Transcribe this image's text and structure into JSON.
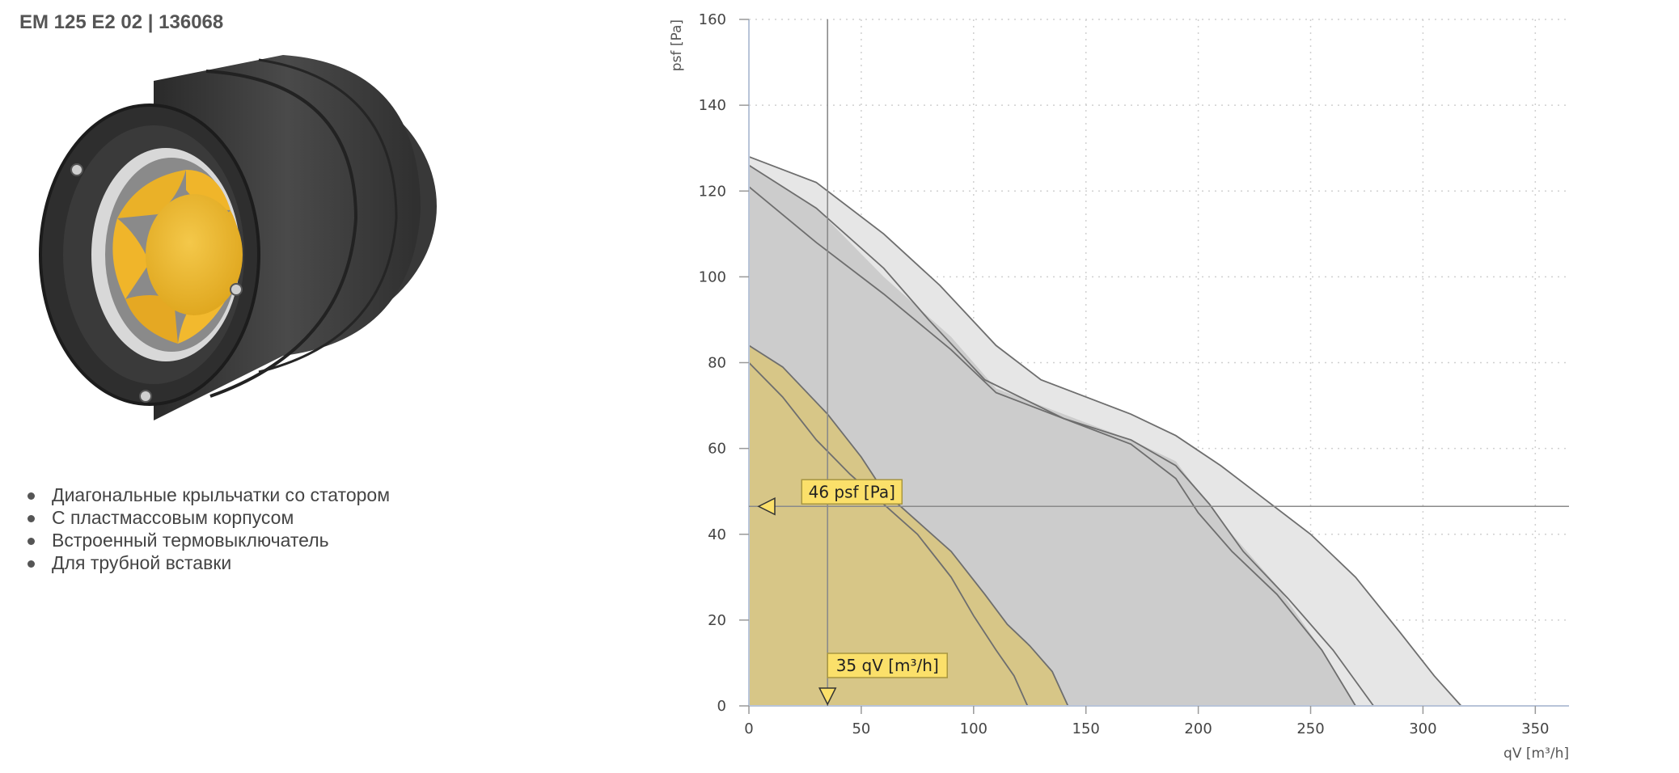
{
  "header": {
    "title": "EM 125 E2 02 | 136068"
  },
  "product": {
    "image_icon": "inline-duct-fan-icon"
  },
  "features": [
    "Диагональные крыльчатки со статором",
    "С пластмассовым корпусом",
    "Встроенный термовыключатель",
    "Для трубной вставки"
  ],
  "chart_data": {
    "type": "area",
    "xlabel": "qV [m³/h]",
    "ylabel": "psf [Pa]",
    "xlim": [
      0,
      365
    ],
    "ylim": [
      0,
      160
    ],
    "x_ticks": [
      0,
      50,
      100,
      150,
      200,
      250,
      300,
      350
    ],
    "y_ticks": [
      0,
      20,
      40,
      60,
      80,
      100,
      120,
      140,
      160
    ],
    "grid": true,
    "colors": {
      "high_area": "#e6e6e6",
      "mid_area": "#cccccc",
      "low_area": "#d7c687",
      "curve": "#6e6e6e",
      "marker_fill": "#fbe06a",
      "marker_border": "#a89640"
    },
    "areas": [
      {
        "x": [
          0,
          30,
          60,
          85,
          110,
          130,
          150,
          170,
          190,
          210,
          230,
          250,
          270,
          290,
          305,
          317
        ],
        "y": [
          128,
          122,
          110,
          98,
          84,
          76,
          72,
          68,
          63,
          56,
          48,
          40,
          30,
          17,
          7,
          0
        ]
      },
      {
        "x": [
          0,
          30,
          60,
          90,
          110,
          140,
          170,
          190,
          200,
          215,
          235,
          255,
          270
        ],
        "y": [
          126,
          116,
          100,
          86,
          74,
          68,
          62,
          57,
          50,
          40,
          28,
          13,
          0
        ]
      },
      {
        "x": [
          0,
          15,
          35,
          50,
          60,
          75,
          90,
          105,
          115,
          125,
          135,
          142
        ],
        "y": [
          84,
          79,
          68,
          58,
          50,
          43,
          36,
          26,
          19,
          14,
          8,
          0
        ]
      }
    ],
    "curves": [
      {
        "x": [
          0,
          30,
          60,
          85,
          110,
          130,
          150,
          170,
          190,
          210,
          230,
          250,
          270,
          290,
          305,
          317
        ],
        "y": [
          128,
          122,
          110,
          98,
          84,
          76,
          72,
          68,
          63,
          56,
          48,
          40,
          30,
          17,
          7,
          0
        ]
      },
      {
        "x": [
          0,
          30,
          60,
          80,
          105,
          140,
          170,
          190,
          205,
          220,
          240,
          260,
          278
        ],
        "y": [
          126,
          116,
          102,
          90,
          76,
          67,
          62,
          56,
          47,
          36,
          25,
          13,
          0
        ]
      },
      {
        "x": [
          0,
          30,
          60,
          90,
          110,
          140,
          170,
          190,
          200,
          215,
          235,
          255,
          270
        ],
        "y": [
          121,
          108,
          96,
          83,
          73,
          67,
          61,
          53,
          45,
          36,
          26,
          13,
          0
        ]
      },
      {
        "x": [
          0,
          15,
          35,
          50,
          60,
          75,
          90,
          105,
          115,
          125,
          135,
          142
        ],
        "y": [
          84,
          79,
          68,
          58,
          50,
          43,
          36,
          26,
          19,
          14,
          8,
          0
        ]
      },
      {
        "x": [
          0,
          15,
          30,
          45,
          60,
          75,
          90,
          100,
          110,
          118,
          124
        ],
        "y": [
          80,
          72,
          62,
          54,
          47,
          40,
          30,
          21,
          13,
          7,
          0
        ]
      }
    ],
    "operating_point": {
      "x": 35,
      "y": 46.5
    },
    "markers": {
      "pressure_label": "46 psf [Pa]",
      "flow_label": "35 qV [m³/h]"
    }
  }
}
